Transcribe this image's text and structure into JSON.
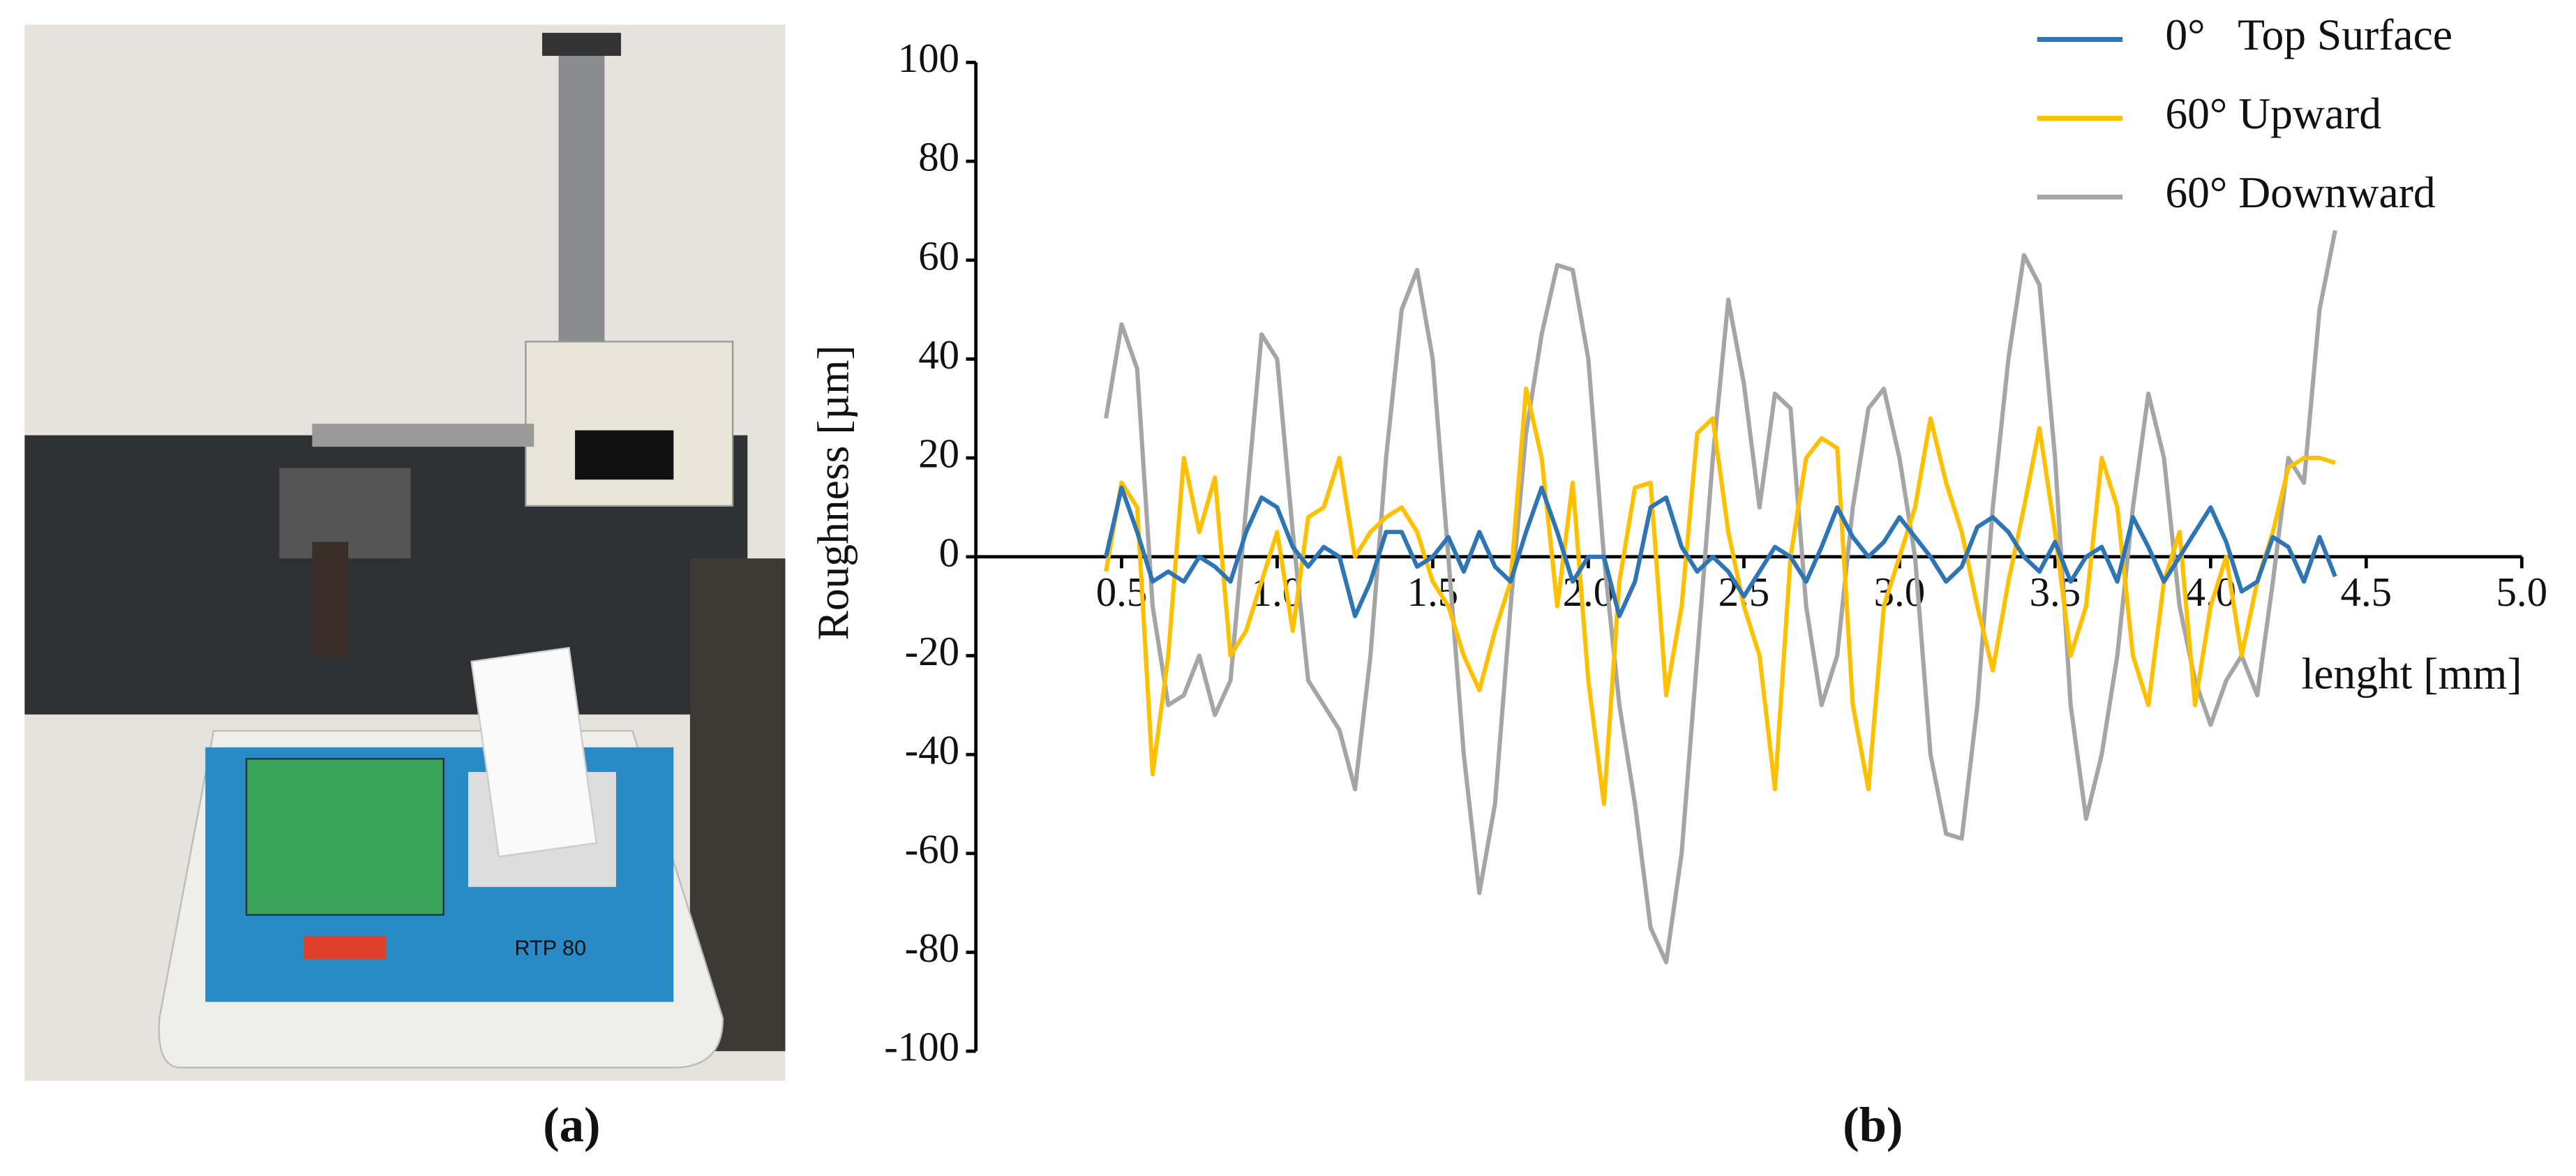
{
  "chart_data": {
    "type": "line",
    "xlabel": "lenght [mm]",
    "ylabel": "Roughness  [µm]",
    "xlim": [
      0,
      5
    ],
    "ylim": [
      -100,
      100
    ],
    "xticks": [
      0.5,
      {
        "value": 1,
        "label": "1.0"
      },
      1.5,
      {
        "value": 2,
        "label": "2.0"
      },
      2.5,
      {
        "value": 3,
        "label": "3.0"
      },
      3.5,
      {
        "value": 4,
        "label": "4.0"
      },
      4.5,
      {
        "value": 5,
        "label": "5.0"
      }
    ],
    "yticks": [
      -100,
      -80,
      -60,
      -40,
      -20,
      0,
      20,
      40,
      60,
      80,
      100
    ],
    "legend": "top-right",
    "x": [
      0.45,
      0.5,
      0.55,
      0.6,
      0.65,
      0.7,
      0.75,
      0.8,
      0.85,
      0.9,
      0.95,
      1,
      1.05,
      1.1,
      1.15,
      1.2,
      1.25,
      1.3,
      1.35,
      1.4,
      1.45,
      1.5,
      1.55,
      1.6,
      1.65,
      1.7,
      1.75,
      1.8,
      1.85,
      1.9,
      1.95,
      2,
      2.05,
      2.1,
      2.15,
      2.2,
      2.25,
      2.3,
      2.35,
      2.4,
      2.45,
      2.5,
      2.55,
      2.6,
      2.65,
      2.7,
      2.75,
      2.8,
      2.85,
      2.9,
      2.95,
      3,
      3.05,
      3.1,
      3.15,
      3.2,
      3.25,
      3.3,
      3.35,
      3.4,
      3.45,
      3.5,
      3.55,
      3.6,
      3.65,
      3.7,
      3.75,
      3.8,
      3.85,
      3.9,
      3.95,
      4,
      4.05,
      4.1,
      4.15,
      4.2,
      4.25,
      4.3,
      4.35,
      4.4
    ],
    "series": [
      {
        "name": "0°   Top Surface",
        "color": "#2e75b6",
        "values": [
          0,
          14,
          5,
          -5,
          -3,
          -5,
          0,
          -2,
          -5,
          5,
          12,
          10,
          2,
          -2,
          2,
          0,
          -12,
          -5,
          5,
          5,
          -2,
          0,
          4,
          -3,
          5,
          -2,
          -5,
          5,
          14,
          5,
          -5,
          0,
          0,
          -12,
          -5,
          10,
          12,
          2,
          -3,
          0,
          -3,
          -8,
          -3,
          2,
          0,
          -5,
          2,
          10,
          4,
          0,
          3,
          8,
          4,
          0,
          -5,
          -2,
          6,
          8,
          5,
          0,
          -3,
          3,
          -5,
          0,
          2,
          -5,
          8,
          2,
          -5,
          0,
          5,
          10,
          3,
          -7,
          -5,
          4,
          2,
          -5,
          4,
          -4
        ]
      },
      {
        "name": "60° Upward",
        "color": "#ffc000",
        "values": [
          -3,
          15,
          10,
          -44,
          -20,
          20,
          5,
          16,
          -20,
          -15,
          -5,
          5,
          -15,
          8,
          10,
          20,
          0,
          5,
          8,
          10,
          5,
          -5,
          -10,
          -20,
          -27,
          -15,
          -5,
          34,
          20,
          -10,
          15,
          -25,
          -50,
          -5,
          14,
          15,
          -28,
          -10,
          25,
          28,
          5,
          -10,
          -20,
          -47,
          0,
          20,
          24,
          22,
          -30,
          -47,
          -10,
          0,
          10,
          28,
          15,
          5,
          -10,
          -23,
          -5,
          10,
          26,
          5,
          -20,
          -10,
          20,
          10,
          -20,
          -30,
          -5,
          5,
          -30,
          -10,
          0,
          -20,
          -5,
          5,
          18,
          20,
          20,
          19
        ]
      },
      {
        "name": "60° Downward",
        "color": "#a5a5a5",
        "values": [
          28,
          47,
          38,
          -10,
          -30,
          -28,
          -20,
          -32,
          -25,
          10,
          45,
          40,
          5,
          -25,
          -30,
          -35,
          -47,
          -20,
          20,
          50,
          58,
          40,
          0,
          -40,
          -68,
          -50,
          -10,
          25,
          45,
          59,
          58,
          40,
          0,
          -30,
          -50,
          -75,
          -82,
          -60,
          -20,
          20,
          52,
          35,
          10,
          33,
          30,
          -10,
          -30,
          -20,
          10,
          30,
          34,
          20,
          0,
          -40,
          -56,
          -57,
          -30,
          10,
          40,
          61,
          55,
          20,
          -30,
          -53,
          -40,
          -20,
          10,
          33,
          20,
          -10,
          -25,
          -34,
          -25,
          -20,
          -28,
          -5,
          20,
          15,
          50,
          66
        ]
      }
    ]
  },
  "panels": {
    "a": "(a)",
    "b": "(b)"
  },
  "photo": {
    "device_label": "RTP 80"
  }
}
